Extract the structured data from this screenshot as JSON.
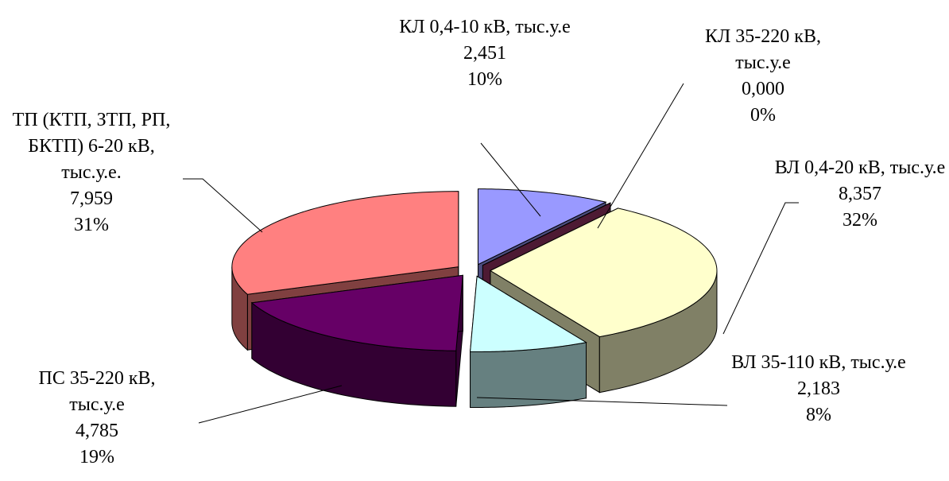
{
  "chart_data": {
    "type": "pie3d",
    "categories": [
      "КЛ 0,4-10 кВ, тыс.у.е",
      "КЛ 35-220 кВ, тыс.у.е",
      "ВЛ 0,4-20 кВ, тыс.у.е",
      "ВЛ 35-110 кВ, тыс.у.е",
      "ПС 35-220 кВ, тыс.у.е",
      "ТП (КТП, ЗТП, РП, БКТП) 6-20 кВ, тыс.у.е."
    ],
    "values": [
      2.451,
      0.0,
      8.357,
      2.183,
      4.785,
      7.959
    ],
    "value_labels": [
      "2,451",
      "0,000",
      "8,357",
      "2,183",
      "4,785",
      "7,959"
    ],
    "percent_labels": [
      "10%",
      "0%",
      "32%",
      "8%",
      "19%",
      "31%"
    ],
    "colors": [
      "#9999ff",
      "#993366",
      "#ffffcc",
      "#ccffff",
      "#660066",
      "#ff8080"
    ]
  }
}
